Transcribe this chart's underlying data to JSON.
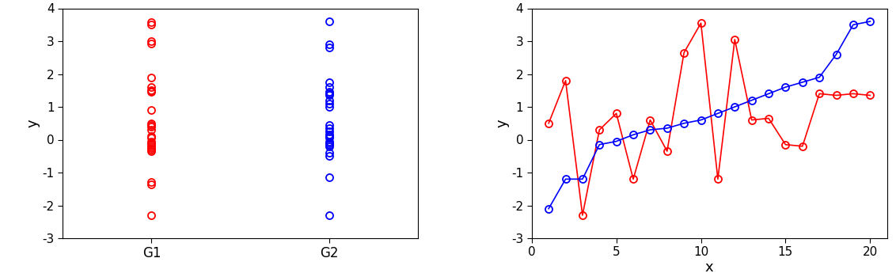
{
  "red_x": [
    1,
    2,
    3,
    4,
    5,
    6,
    7,
    8,
    9,
    10,
    11,
    12,
    13,
    14,
    15,
    16,
    17,
    18,
    19,
    20
  ],
  "red_y": [
    0.5,
    1.8,
    -2.3,
    0.3,
    0.8,
    -1.2,
    0.6,
    -0.35,
    2.65,
    3.55,
    -1.2,
    3.05,
    0.6,
    0.65,
    -0.15,
    -0.2,
    1.4,
    1.35,
    1.4,
    1.35
  ],
  "blue_x": [
    1,
    2,
    3,
    4,
    5,
    6,
    7,
    8,
    9,
    10,
    11,
    12,
    13,
    14,
    15,
    16,
    17,
    18,
    19,
    20
  ],
  "blue_y": [
    -2.1,
    -1.2,
    -1.2,
    -0.15,
    -0.05,
    0.15,
    0.3,
    0.35,
    0.5,
    0.6,
    0.8,
    1.0,
    1.2,
    1.4,
    1.6,
    1.75,
    1.9,
    2.6,
    3.5,
    3.6
  ],
  "g1_red_y": [
    3.57,
    3.5,
    3.0,
    2.93,
    1.9,
    1.6,
    1.5,
    1.48,
    1.45,
    0.9,
    0.5,
    0.45,
    0.4,
    0.3,
    0.1,
    0.05,
    -0.05,
    -0.1,
    -0.15,
    -0.2,
    -0.25,
    -0.3,
    -0.35,
    -1.3,
    -1.35,
    -2.3
  ],
  "g2_blue_y": [
    3.6,
    2.9,
    2.8,
    1.75,
    1.6,
    1.45,
    1.4,
    1.35,
    1.2,
    1.1,
    1.0,
    0.45,
    0.35,
    0.25,
    0.15,
    0.1,
    0.05,
    -0.05,
    -0.1,
    -0.15,
    -0.2,
    -0.4,
    -0.5,
    -1.15,
    -2.3
  ],
  "red_color": "#FF0000",
  "blue_color": "#0000FF",
  "ylim": [
    -3,
    4
  ],
  "xlim_right": [
    0,
    21
  ],
  "xlabel_right": "x",
  "ylabel": "y",
  "xticks_right": [
    0,
    5,
    10,
    15,
    20
  ],
  "yticks": [
    -3,
    -2,
    -1,
    0,
    1,
    2,
    3,
    4
  ]
}
